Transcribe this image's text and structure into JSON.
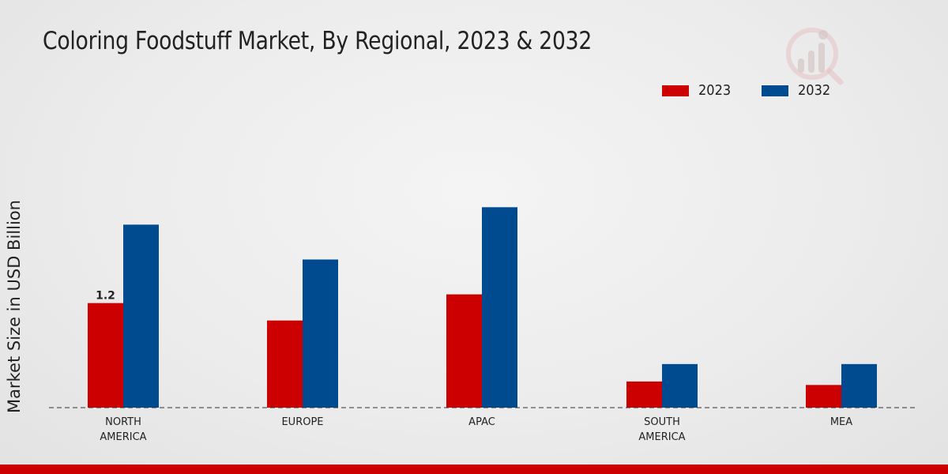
{
  "chart_data": {
    "type": "bar",
    "title": "Coloring Foodstuff Market, By Regional, 2023 & 2032",
    "ylabel": "Market Size in USD Billion",
    "xlabel": "",
    "categories": [
      "NORTH\nAMERICA",
      "EUROPE",
      "APAC",
      "SOUTH\nAMERICA",
      "MEA"
    ],
    "series": [
      {
        "name": "2023",
        "color": "#cc0000",
        "values": [
          1.2,
          1.0,
          1.3,
          0.3,
          0.26
        ]
      },
      {
        "name": "2032",
        "color": "#004a8f",
        "values": [
          2.1,
          1.7,
          2.3,
          0.5,
          0.5
        ]
      }
    ],
    "data_labels": [
      {
        "series": 0,
        "index": 0,
        "text": "1.2"
      }
    ],
    "ylim": [
      0,
      3.3
    ],
    "grid": false,
    "legend": "top-right"
  }
}
